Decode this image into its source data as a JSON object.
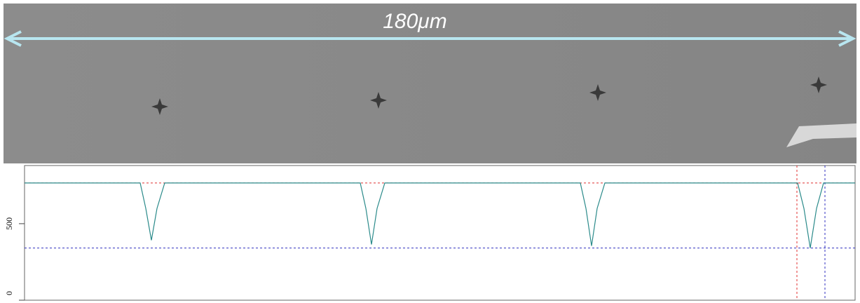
{
  "image": {
    "scale_bar_label": "180μm"
  },
  "chart_data": {
    "type": "line",
    "x": [
      0,
      165,
      173,
      181,
      189,
      200,
      479,
      487,
      495,
      503,
      514,
      793,
      801,
      809,
      817,
      828,
      1103,
      1112,
      1121,
      1130,
      1140,
      1185
    ],
    "series": [
      {
        "color": "#2a8a8a",
        "values": [
          766,
          766,
          600,
          392,
          600,
          766,
          766,
          600,
          364,
          600,
          766,
          766,
          600,
          355,
          600,
          766,
          766,
          600,
          341,
          600,
          766,
          766
        ]
      }
    ],
    "xlim": [
      0,
      1185
    ],
    "ylim": [
      0,
      880
    ],
    "yticks": [
      0,
      500
    ],
    "reference_lines": {
      "horizontal": [
        {
          "value": 766,
          "color": "#e03030"
        },
        {
          "value": 341,
          "color": "#3030c0"
        }
      ],
      "vertical": [
        {
          "value": 1102,
          "color": "#e03030"
        },
        {
          "value": 1142,
          "color": "#3030c0"
        }
      ]
    }
  }
}
